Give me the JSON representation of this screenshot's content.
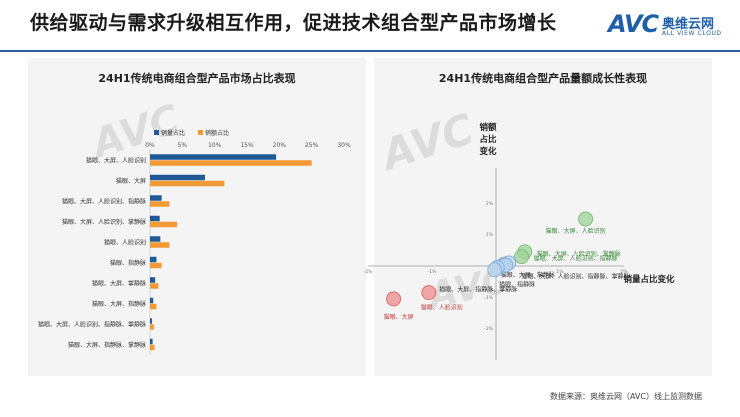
{
  "header": {
    "title": "供给驱动与需求升级相互作用，促进技术组合型产品市场增长",
    "logo_mark": "AVC",
    "logo_cn": "奥维云网",
    "logo_en": "ALL VIEW CLOUD"
  },
  "colors": {
    "volume": "#1f5a96",
    "revenue": "#f29a35",
    "accent": "#2a5fa8",
    "green": "#9ed39a",
    "blue": "#b9d4ee",
    "red": "#f08c8c"
  },
  "chart_data": [
    {
      "type": "bar",
      "orientation": "horizontal",
      "title": "24H1传统电商组合型产品市场占比表现",
      "legend_position": "top",
      "categories": [
        "猫眼、大屏、人脸识别",
        "猫眼、大屏",
        "猫眼、大屏、人脸识别、指静脉",
        "猫眼、大屏、人脸识别、掌静脉",
        "猫眼、人脸识别",
        "猫眼、指静脉",
        "猫眼、大屏、掌静脉",
        "猫眼、大屏、指静脉",
        "猫眼、大屏、人脸识别、指静脉、掌静脉",
        "猫眼、大屏、指静脉、掌静脉"
      ],
      "xlim": [
        0,
        30
      ],
      "xticks": [
        "0%",
        "5%",
        "10%",
        "15%",
        "20%",
        "25%",
        "30%"
      ],
      "series": [
        {
          "name": "销量占比",
          "values": [
            19.5,
            8.5,
            1.8,
            1.5,
            1.6,
            1.0,
            0.8,
            0.5,
            0.3,
            0.4
          ]
        },
        {
          "name": "销额占比",
          "values": [
            25.0,
            11.5,
            3.0,
            4.2,
            3.0,
            1.8,
            1.3,
            1.0,
            0.6,
            0.7
          ]
        }
      ]
    },
    {
      "type": "scatter",
      "title": "24H1传统电商组合型产品量额成长性表现",
      "xlabel": "销量占比变化",
      "ylabel": "销额占比变化",
      "xlim": [
        -2,
        2
      ],
      "ylim": [
        -2,
        2
      ],
      "xticks": [
        "-2%",
        "-1%",
        "0%",
        "1%",
        "2%"
      ],
      "yticks": [
        "2%",
        "1%",
        "0%",
        "-1%",
        "-2%"
      ],
      "points": [
        {
          "label": "猫眼、大屏、人脸识别",
          "x": 1.4,
          "y": 1.5,
          "color": "green"
        },
        {
          "label": "猫眼、大屏、人脸识别、掌静脉",
          "x": 0.45,
          "y": 0.45,
          "color": "green"
        },
        {
          "label": "猫眼、大屏、人脸识别、指静脉",
          "x": 0.4,
          "y": 0.3,
          "color": "green"
        },
        {
          "label": "猫眼、大屏、掌静脉",
          "x": 0.2,
          "y": 0.1,
          "color": "blue"
        },
        {
          "label": "猫眼、大屏、人脸识别、指静脉、掌静脉",
          "x": 0.12,
          "y": 0.05,
          "color": "blue"
        },
        {
          "label": "猫眼、指静脉",
          "x": 0.08,
          "y": -0.02,
          "color": "blue"
        },
        {
          "label": "",
          "x": 0.15,
          "y": 0.03,
          "color": "blue"
        },
        {
          "label": "猫眼、大屏、指静脉、掌静脉",
          "x": 0.02,
          "y": -0.05,
          "color": "blue"
        },
        {
          "label": "",
          "x": -0.02,
          "y": -0.12,
          "color": "blue"
        },
        {
          "label": "猫眼、人脸识别",
          "x": -1.05,
          "y": -0.85,
          "color": "red"
        },
        {
          "label": "猫眼、大屏",
          "x": -1.6,
          "y": -1.05,
          "color": "red"
        }
      ]
    }
  ],
  "footer": {
    "source": "数据来源：奥维云网（AVC）线上监测数据"
  }
}
